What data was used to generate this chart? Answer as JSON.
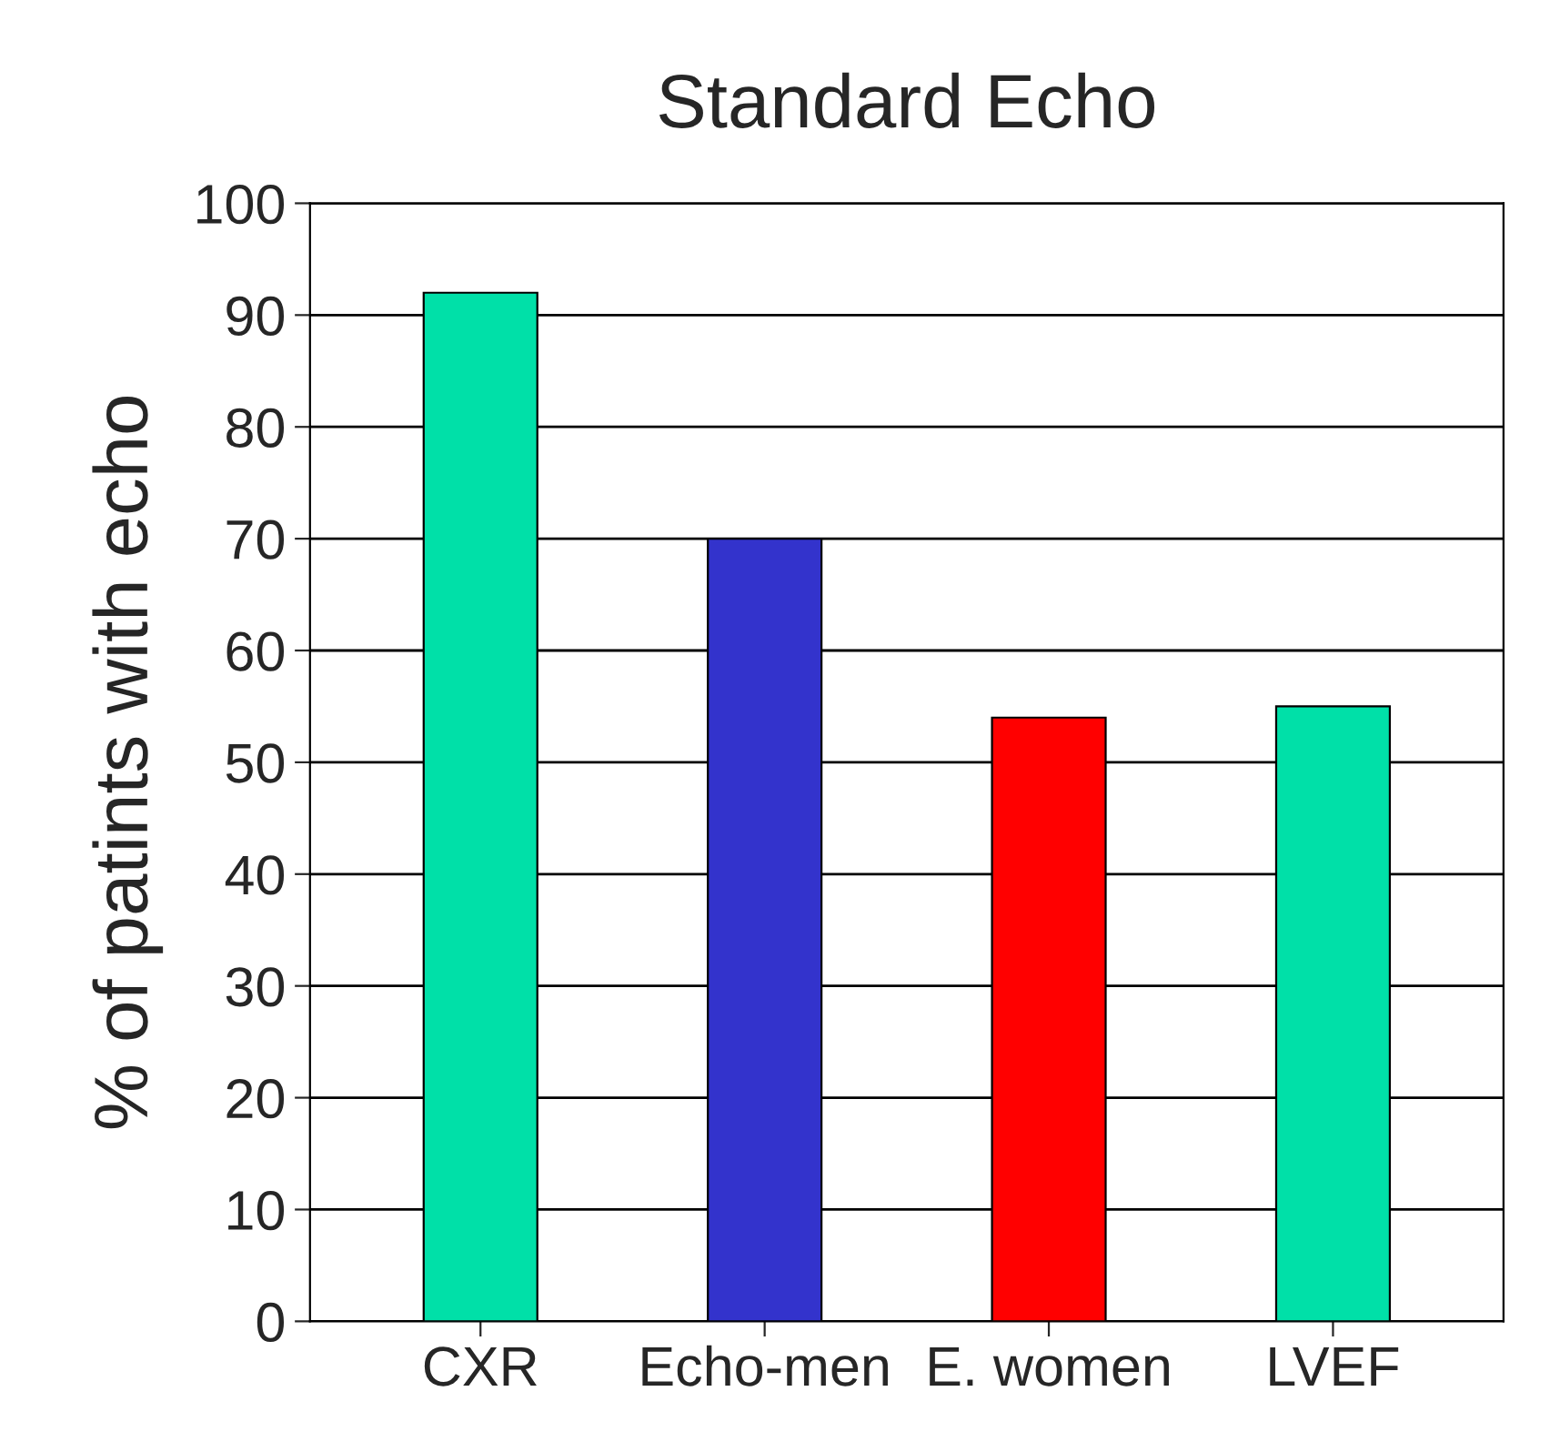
{
  "chart_data": {
    "type": "bar",
    "title": "Standard Echo",
    "ylabel": "% of patints with echo",
    "categories": [
      "CXR",
      "Echo-men",
      "E. women",
      "LVEF"
    ],
    "values": [
      92,
      70,
      54,
      55
    ],
    "colors": [
      "#00e0a8",
      "#3333cc",
      "#ff0000",
      "#00e0a8"
    ],
    "ylim": [
      0,
      100
    ],
    "yticks": [
      0,
      10,
      20,
      30,
      40,
      50,
      60,
      70,
      80,
      90,
      100
    ],
    "grid": "y",
    "legend": false
  }
}
